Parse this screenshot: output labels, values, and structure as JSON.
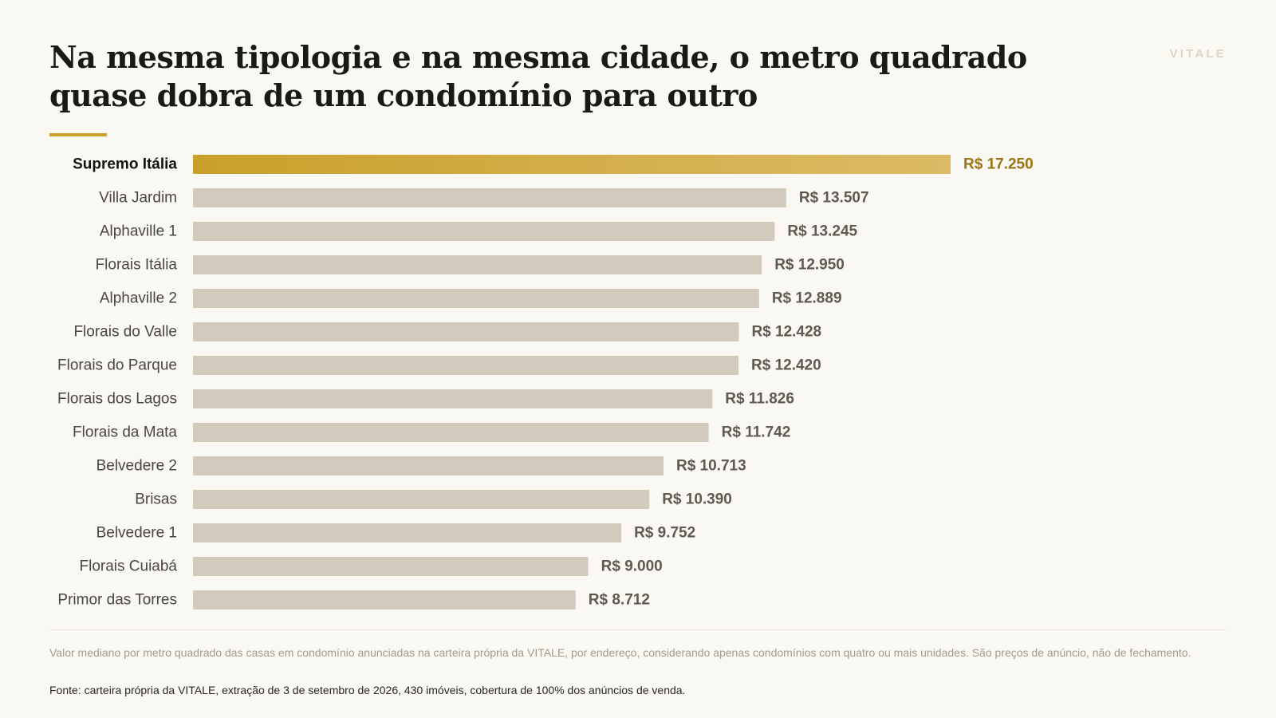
{
  "header": {
    "title": "Na mesma tipologia e na mesma cidade, o metro quadrado quase dobra de um condomínio para outro",
    "brand": "VITALE"
  },
  "colors": {
    "highlight_bar_start": "#c9a02a",
    "highlight_bar_end": "#dcbb66",
    "highlight_value_label": "#9a7416",
    "bar": "#d2cabd",
    "value_label": "#5f5a51",
    "category_label": "#4a4640",
    "highlight_category_label": "#141210",
    "accent_rule": "#c9a02a",
    "background": "#f9f8f3"
  },
  "chart_data": {
    "type": "bar",
    "orientation": "horizontal",
    "title": "Na mesma tipologia e na mesma cidade, o metro quadrado quase dobra de um condomínio para outro",
    "highlight_category": "Supremo Itália",
    "categories": [
      "Supremo Itália",
      "Villa Jardim",
      "Alphaville 1",
      "Florais Itália",
      "Alphaville 2",
      "Florais do Valle",
      "Florais do Parque",
      "Florais dos Lagos",
      "Florais da Mata",
      "Belvedere 2",
      "Brisas",
      "Belvedere 1",
      "Florais Cuiabá",
      "Primor das Torres"
    ],
    "values": [
      17250,
      13507,
      13245,
      12950,
      12889,
      12428,
      12420,
      11826,
      11742,
      10713,
      10390,
      9752,
      9000,
      8712
    ],
    "value_labels": [
      "R$ 17.250",
      "R$ 13.507",
      "R$ 13.245",
      "R$ 12.950",
      "R$ 12.889",
      "R$ 12.428",
      "R$ 12.420",
      "R$ 11.826",
      "R$ 11.742",
      "R$ 10.713",
      "R$ 10.390",
      "R$ 9.752",
      "R$ 9.000",
      "R$ 8.712"
    ],
    "xlim": [
      0,
      17250
    ],
    "grid": false,
    "legend": "none",
    "xlabel": "",
    "ylabel": ""
  },
  "footer": {
    "note": "Valor mediano por metro quadrado das casas em condomínio anunciadas na carteira própria da VITALE, por endereço, considerando apenas condomínios com quatro ou mais unidades. São preços de anúncio, não de fechamento.",
    "source": "Fonte: carteira própria da VITALE, extração de 3 de setembro de 2026, 430 imóveis, cobertura de 100% dos anúncios de venda."
  }
}
